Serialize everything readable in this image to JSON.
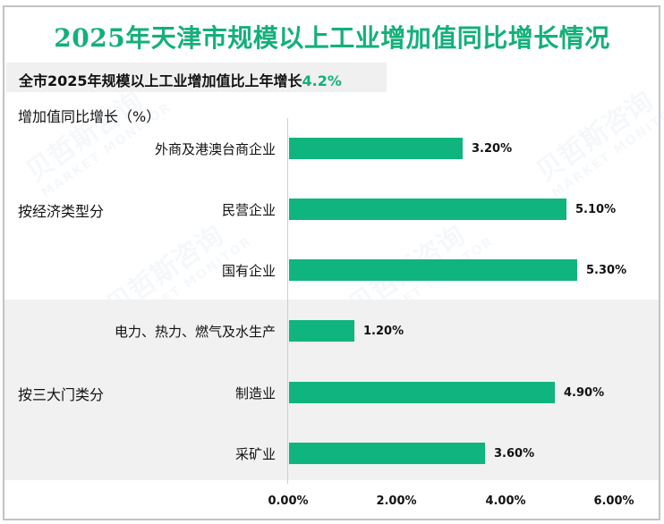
{
  "title": "2025年天津市规模以上工业增加值同比增长情况",
  "summary": {
    "text": "全市2025年规模以上工业增加值比上年增长",
    "value": "4.2%"
  },
  "watermark": {
    "cn": "贝哲斯咨询",
    "en": "MARKET MONITOR"
  },
  "colors": {
    "title": "#13b07a",
    "bar": "#10b47f",
    "band": "#f1f1f1",
    "accent": "#13b07a"
  },
  "chart_data": {
    "type": "bar",
    "orientation": "horizontal",
    "title": "2025年天津市规模以上工业增加值同比增长情况",
    "ylabel": "增加值同比增长（%）",
    "xlabel": "",
    "groups": [
      {
        "name": "按经济类型分",
        "categories": [
          "外商及港澳台商企业",
          "民营企业",
          "国有企业"
        ],
        "values": [
          3.2,
          5.1,
          5.3
        ]
      },
      {
        "name": "按三大门类分",
        "categories": [
          "电力、热力、燃气及水生产",
          "制造业",
          "采矿业"
        ],
        "values": [
          1.2,
          4.9,
          3.6
        ]
      }
    ],
    "categories": [
      "外商及港澳台商企业",
      "民营企业",
      "国有企业",
      "电力、热力、燃气及水生产",
      "制造业",
      "采矿业"
    ],
    "values": [
      3.2,
      5.1,
      5.3,
      1.2,
      4.9,
      3.6
    ],
    "value_labels": [
      "3.20%",
      "5.10%",
      "5.30%",
      "1.20%",
      "4.90%",
      "3.60%"
    ],
    "xlim": [
      0,
      6
    ],
    "x_ticks": [
      "0.00%",
      "2.00%",
      "4.00%",
      "6.00%"
    ],
    "grid": false,
    "legend": "none"
  }
}
